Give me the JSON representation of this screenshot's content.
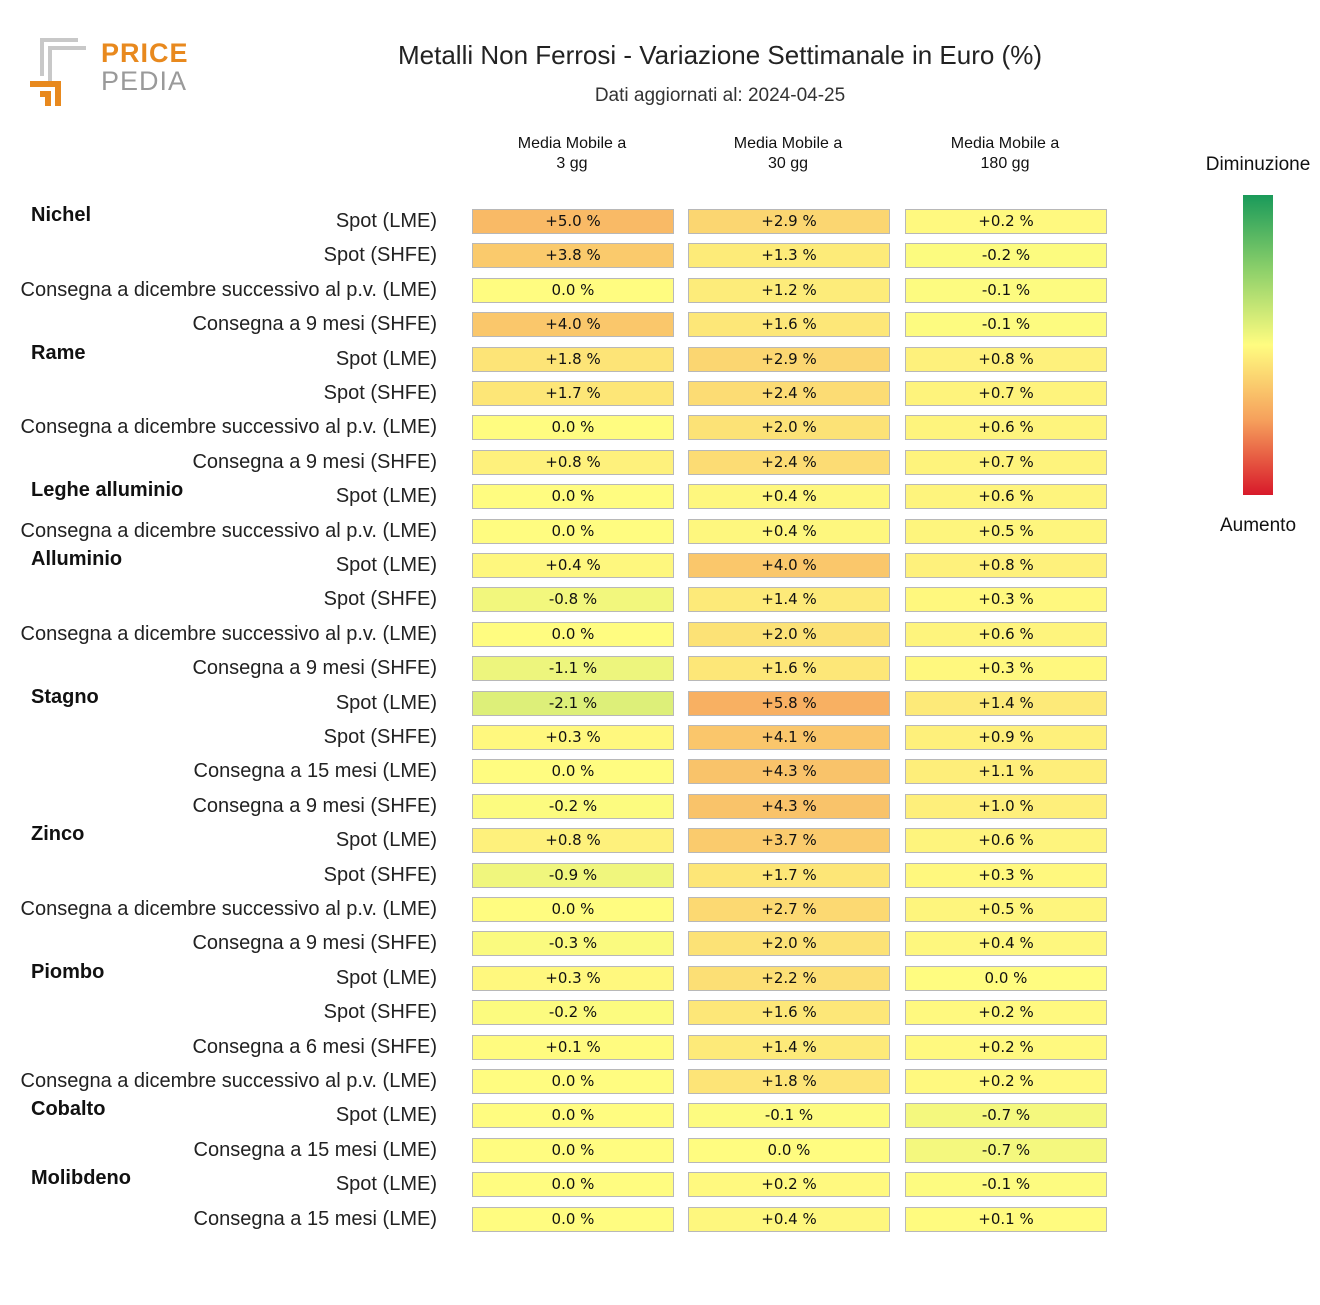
{
  "brand": {
    "price": "PRICE",
    "pedia": "PEDIA"
  },
  "title": "Metalli Non Ferrosi - Variazione Settimanale in Euro (%)",
  "subtitle": "Dati aggiornati al: 2024-04-25",
  "legend": {
    "top": "Diminuzione",
    "bottom": "Aumento"
  },
  "chart_data": {
    "type": "heatmap",
    "title": "Metalli Non Ferrosi - Variazione Settimanale in Euro (%)",
    "subtitle": "Dati aggiornati al: 2024-04-25",
    "columns": [
      {
        "line1": "Media Mobile a",
        "line2": "3 gg"
      },
      {
        "line1": "Media Mobile a",
        "line2": "30 gg"
      },
      {
        "line1": "Media Mobile a",
        "line2": "180 gg"
      }
    ],
    "legend": {
      "top": "Diminuzione",
      "bottom": "Aumento"
    },
    "color_scale": [
      "#1a9a5a",
      "#8dd06a",
      "#fffc80",
      "#f6a05c",
      "#d8192a"
    ],
    "groups": [
      {
        "name": "Nichel",
        "rows": [
          {
            "label": "Spot (LME)",
            "values": [
              "+5.0 %",
              "+2.9 %",
              "+0.2 %"
            ]
          },
          {
            "label": "Spot (SHFE)",
            "values": [
              "+3.8 %",
              "+1.3 %",
              "-0.2 %"
            ]
          },
          {
            "label": "Consegna a dicembre successivo al p.v. (LME)",
            "values": [
              "0.0 %",
              "+1.2 %",
              "-0.1 %"
            ]
          },
          {
            "label": "Consegna a 9 mesi (SHFE)",
            "values": [
              "+4.0 %",
              "+1.6 %",
              "-0.1 %"
            ]
          }
        ]
      },
      {
        "name": "Rame",
        "rows": [
          {
            "label": "Spot (LME)",
            "values": [
              "+1.8 %",
              "+2.9 %",
              "+0.8 %"
            ]
          },
          {
            "label": "Spot (SHFE)",
            "values": [
              "+1.7 %",
              "+2.4 %",
              "+0.7 %"
            ]
          },
          {
            "label": "Consegna a dicembre successivo al p.v. (LME)",
            "values": [
              "0.0 %",
              "+2.0 %",
              "+0.6 %"
            ]
          },
          {
            "label": "Consegna a 9 mesi (SHFE)",
            "values": [
              "+0.8 %",
              "+2.4 %",
              "+0.7 %"
            ]
          }
        ]
      },
      {
        "name": "Leghe alluminio",
        "rows": [
          {
            "label": "Spot (LME)",
            "values": [
              "0.0 %",
              "+0.4 %",
              "+0.6 %"
            ]
          },
          {
            "label": "Consegna a dicembre successivo al p.v. (LME)",
            "values": [
              "0.0 %",
              "+0.4 %",
              "+0.5 %"
            ]
          }
        ]
      },
      {
        "name": "Alluminio",
        "rows": [
          {
            "label": "Spot (LME)",
            "values": [
              "+0.4 %",
              "+4.0 %",
              "+0.8 %"
            ]
          },
          {
            "label": "Spot (SHFE)",
            "values": [
              "-0.8 %",
              "+1.4 %",
              "+0.3 %"
            ]
          },
          {
            "label": "Consegna a dicembre successivo al p.v. (LME)",
            "values": [
              "0.0 %",
              "+2.0 %",
              "+0.6 %"
            ]
          },
          {
            "label": "Consegna a 9 mesi (SHFE)",
            "values": [
              "-1.1 %",
              "+1.6 %",
              "+0.3 %"
            ]
          }
        ]
      },
      {
        "name": "Stagno",
        "rows": [
          {
            "label": "Spot (LME)",
            "values": [
              "-2.1 %",
              "+5.8 %",
              "+1.4 %"
            ]
          },
          {
            "label": "Spot (SHFE)",
            "values": [
              "+0.3 %",
              "+4.1 %",
              "+0.9 %"
            ]
          },
          {
            "label": "Consegna a 15 mesi (LME)",
            "values": [
              "0.0 %",
              "+4.3 %",
              "+1.1 %"
            ]
          },
          {
            "label": "Consegna a 9 mesi (SHFE)",
            "values": [
              "-0.2 %",
              "+4.3 %",
              "+1.0 %"
            ]
          }
        ]
      },
      {
        "name": "Zinco",
        "rows": [
          {
            "label": "Spot (LME)",
            "values": [
              "+0.8 %",
              "+3.7 %",
              "+0.6 %"
            ]
          },
          {
            "label": "Spot (SHFE)",
            "values": [
              "-0.9 %",
              "+1.7 %",
              "+0.3 %"
            ]
          },
          {
            "label": "Consegna a dicembre successivo al p.v. (LME)",
            "values": [
              "0.0 %",
              "+2.7 %",
              "+0.5 %"
            ]
          },
          {
            "label": "Consegna a 9 mesi (SHFE)",
            "values": [
              "-0.3 %",
              "+2.0 %",
              "+0.4 %"
            ]
          }
        ]
      },
      {
        "name": "Piombo",
        "rows": [
          {
            "label": "Spot (LME)",
            "values": [
              "+0.3 %",
              "+2.2 %",
              "0.0 %"
            ]
          },
          {
            "label": "Spot (SHFE)",
            "values": [
              "-0.2 %",
              "+1.6 %",
              "+0.2 %"
            ]
          },
          {
            "label": "Consegna a 6 mesi (SHFE)",
            "values": [
              "+0.1 %",
              "+1.4 %",
              "+0.2 %"
            ]
          },
          {
            "label": "Consegna a dicembre successivo al p.v. (LME)",
            "values": [
              "0.0 %",
              "+1.8 %",
              "+0.2 %"
            ]
          }
        ]
      },
      {
        "name": "Cobalto",
        "rows": [
          {
            "label": "Spot (LME)",
            "values": [
              "0.0 %",
              "-0.1 %",
              "-0.7 %"
            ]
          },
          {
            "label": "Consegna a 15 mesi (LME)",
            "values": [
              "0.0 %",
              "0.0 %",
              "-0.7 %"
            ]
          }
        ]
      },
      {
        "name": "Molibdeno",
        "rows": [
          {
            "label": "Spot (LME)",
            "values": [
              "0.0 %",
              "+0.2 %",
              "-0.1 %"
            ]
          },
          {
            "label": "Consegna a 15 mesi (LME)",
            "values": [
              "0.0 %",
              "+0.4 %",
              "+0.1 %"
            ]
          }
        ]
      }
    ]
  }
}
